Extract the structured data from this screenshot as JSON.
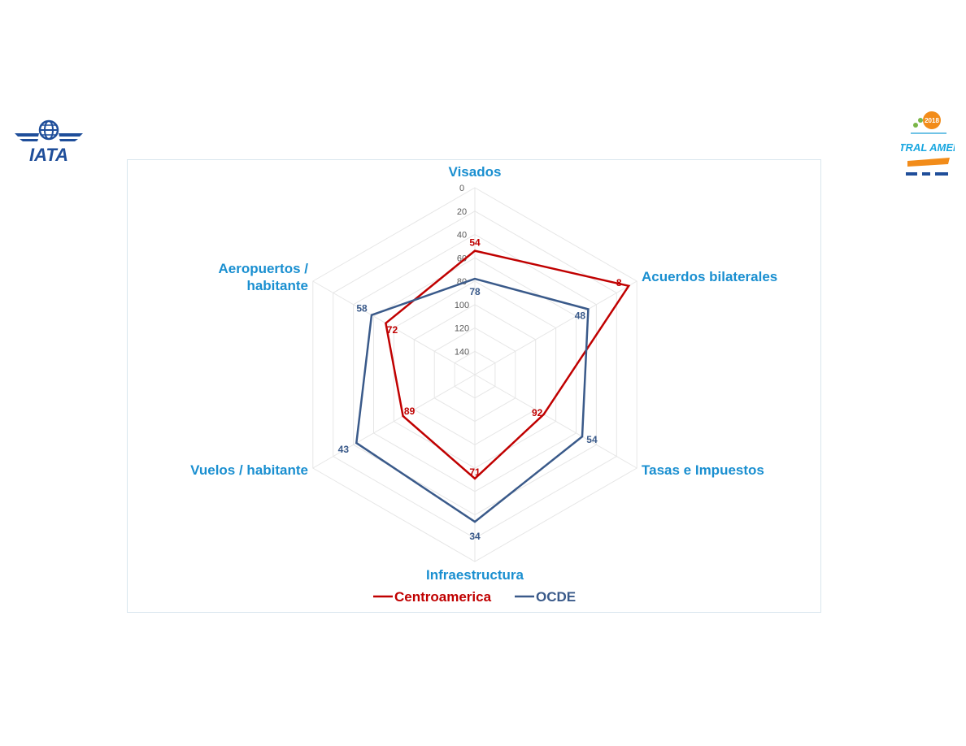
{
  "logos": {
    "left": {
      "text": "IATA",
      "icon": "iata-globe-wings-icon"
    },
    "right": {
      "icon": "central-america-aviation-day-logo",
      "text": "CENTRAL AMERICA",
      "badge": "2018"
    }
  },
  "colors": {
    "centroamerica": "#c00000",
    "ocde": "#3a5a8a",
    "axis_label": "#1a8fd0",
    "grid": "#e6e6e6"
  },
  "chart_data": {
    "type": "radar",
    "axes": [
      [
        "Visados"
      ],
      [
        "Acuerdos bilaterales"
      ],
      [
        "Tasas e Impuestos"
      ],
      [
        "Infraestructura"
      ],
      [
        "Vuelos / habitante"
      ],
      [
        "Aeropuertos /",
        "habitante"
      ]
    ],
    "radial_ticks": [
      0,
      20,
      40,
      60,
      80,
      100,
      120,
      140
    ],
    "rlim": [
      0,
      160
    ],
    "reversed": true,
    "grid": true,
    "legend": "bottom",
    "series": [
      {
        "name": "Centroamerica",
        "values": [
          54,
          8,
          92,
          71,
          89,
          72
        ]
      },
      {
        "name": "OCDE",
        "values": [
          78,
          48,
          54,
          34,
          43,
          58
        ]
      }
    ]
  }
}
